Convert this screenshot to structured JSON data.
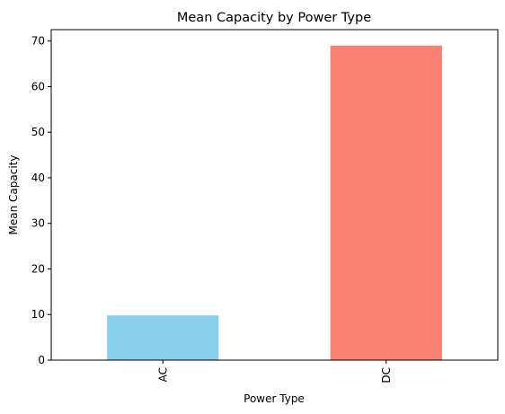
{
  "chart_data": {
    "type": "bar",
    "title": "Mean Capacity by Power Type",
    "xlabel": "Power Type",
    "ylabel": "Mean Capacity",
    "categories": [
      "AC",
      "DC"
    ],
    "values": [
      9.8,
      69.0
    ],
    "colors": [
      "#87ceeb",
      "#fa8072"
    ],
    "ylim": [
      0,
      72.5
    ],
    "yticks": [
      0,
      10,
      20,
      30,
      40,
      50,
      60,
      70
    ],
    "x_tick_rotation": "vertical",
    "grid": false,
    "legend": "none"
  }
}
